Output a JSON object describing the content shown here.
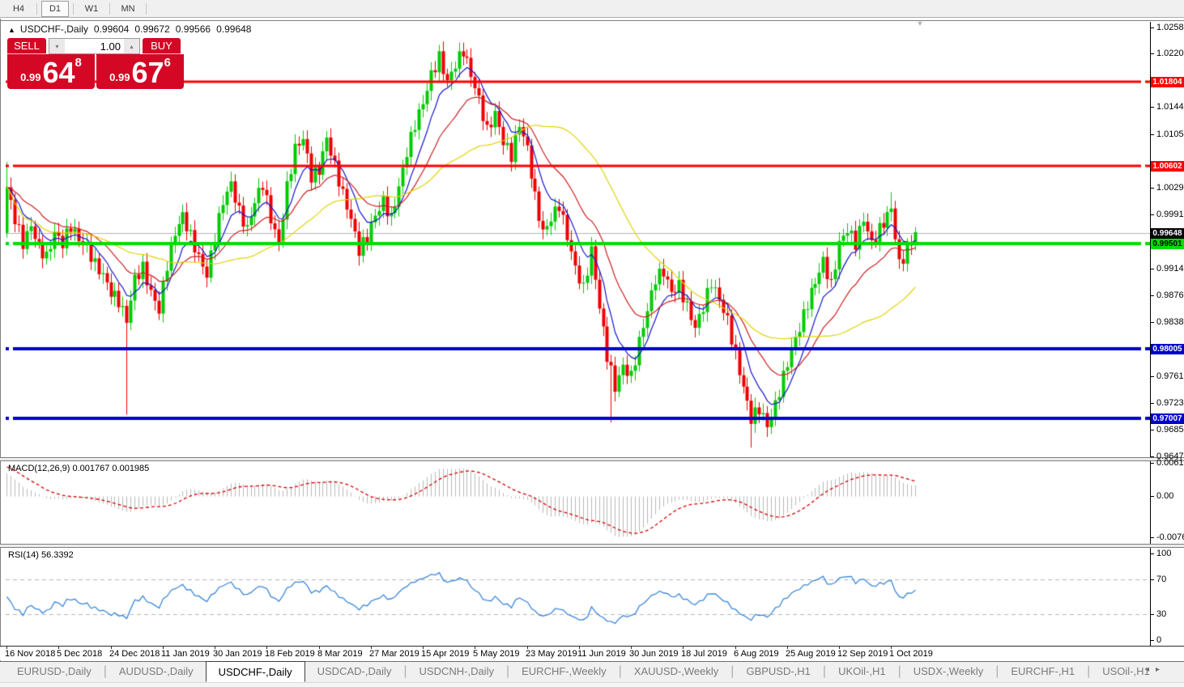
{
  "toolbar": {
    "timeframes": [
      {
        "label": "H4",
        "active": false
      },
      {
        "label": "D1",
        "active": true
      },
      {
        "label": "W1",
        "active": false
      },
      {
        "label": "MN",
        "active": false
      }
    ]
  },
  "window": {
    "title": {
      "collapse_icon": "▲",
      "symbol": "USDCHF-,Daily",
      "open": "0.99604",
      "high": "0.99672",
      "low": "0.99566",
      "close": "0.99648"
    },
    "trade_panel": {
      "sell_label": "SELL",
      "buy_label": "BUY",
      "volume": "1.00",
      "spin_down_icon": "▾",
      "spin_up_icon": "▴",
      "sell_price_int": "0.99",
      "sell_price_big": "64",
      "sell_price_sup": "8",
      "buy_price_int": "0.99",
      "buy_price_big": "67",
      "buy_price_sup": "6"
    },
    "shift_marker_icon": "▼"
  },
  "price_axis": {
    "labels": [
      {
        "text": "1.02580",
        "value": 1.0258
      },
      {
        "text": "1.02200",
        "value": 1.022
      },
      {
        "text": "1.01440",
        "value": 1.0144
      },
      {
        "text": "1.01050",
        "value": 1.0105
      },
      {
        "text": "1.00290",
        "value": 1.0029
      },
      {
        "text": "0.99910",
        "value": 0.9991
      },
      {
        "text": "0.99140",
        "value": 0.9914
      },
      {
        "text": "0.98760",
        "value": 0.9876
      },
      {
        "text": "0.98380",
        "value": 0.9838
      },
      {
        "text": "0.97610",
        "value": 0.9761
      },
      {
        "text": "0.97230",
        "value": 0.9723
      },
      {
        "text": "0.96850",
        "value": 0.9685
      },
      {
        "text": "0.96470",
        "value": 0.9647
      }
    ],
    "badges": [
      {
        "text": "1.01804",
        "value": 1.01804,
        "bg": "#ff0000",
        "fg": "#ffffff"
      },
      {
        "text": "1.00602",
        "value": 1.00602,
        "bg": "#ff0000",
        "fg": "#ffffff"
      },
      {
        "text": "0.99648",
        "value": 0.99648,
        "bg": "#000000",
        "fg": "#ffffff"
      },
      {
        "text": "0.99501",
        "value": 0.99501,
        "bg": "#00dd00",
        "fg": "#000000"
      },
      {
        "text": "0.98005",
        "value": 0.98005,
        "bg": "#0000cc",
        "fg": "#ffffff"
      },
      {
        "text": "0.97007",
        "value": 0.97007,
        "bg": "#0000cc",
        "fg": "#ffffff"
      }
    ]
  },
  "macd_panel": {
    "label": "MACD(12,26,9) 0.001767 0.001985",
    "axis": [
      {
        "text": "0.00613",
        "value": 0.00613
      },
      {
        "text": "0.00",
        "value": 0
      },
      {
        "text": "-0.00761",
        "value": -0.00761
      }
    ]
  },
  "rsi_panel": {
    "label": "RSI(14) 56.3392",
    "axis": [
      {
        "text": "100",
        "value": 100
      },
      {
        "text": "70",
        "value": 70
      },
      {
        "text": "30",
        "value": 30
      },
      {
        "text": "0",
        "value": 0
      }
    ]
  },
  "time_axis": {
    "labels": [
      "16 Nov 2018",
      "5 Dec 2018",
      "24 Dec 2018",
      "11 Jan 2019",
      "30 Jan 2019",
      "18 Feb 2019",
      "8 Mar 2019",
      "27 Mar 2019",
      "15 Apr 2019",
      "5 May 2019",
      "23 May 2019",
      "11 Jun 2019",
      "30 Jun 2019",
      "18 Jul 2019",
      "6 Aug 2019",
      "25 Aug 2019",
      "12 Sep 2019",
      "1 Oct 2019"
    ]
  },
  "tabs": {
    "items": [
      {
        "label": "EURUSD-,Daily",
        "active": false
      },
      {
        "label": "AUDUSD-,Daily",
        "active": false
      },
      {
        "label": "USDCHF-,Daily",
        "active": true
      },
      {
        "label": "USDCAD-,Daily",
        "active": false
      },
      {
        "label": "USDCNH-,Daily",
        "active": false
      },
      {
        "label": "EURCHF-,Weekly",
        "active": false
      },
      {
        "label": "XAUUSD-,Weekly",
        "active": false
      },
      {
        "label": "GBPUSD-,H1",
        "active": false
      },
      {
        "label": "UKOil-,H1",
        "active": false
      },
      {
        "label": "USDX-,Weekly",
        "active": false
      },
      {
        "label": "EURCHF-,H1",
        "active": false
      },
      {
        "label": "USOil-,H1",
        "active": false
      }
    ],
    "scroll_left_icon": "◂",
    "scroll_right_icon": "▸"
  },
  "chart_data": {
    "type": "candlestick",
    "symbol": "USDCHF-",
    "timeframe": "Daily",
    "ohlc_display": {
      "open": 0.99604,
      "high": 0.99672,
      "low": 0.99566,
      "close": 0.99648
    },
    "bars": 228,
    "price_axis_range": {
      "top": 1.02655,
      "bottom": 0.96455
    },
    "current_price": 0.99648,
    "up_color": "#00cc00",
    "down_color": "#ee0000",
    "horizontal_levels": [
      {
        "price": 1.01804,
        "color": "#ff0000",
        "width": 3,
        "type": "resistance"
      },
      {
        "price": 1.00602,
        "color": "#ff0000",
        "width": 3,
        "type": "resistance"
      },
      {
        "price": 0.99501,
        "color": "#00dd00",
        "width": 4,
        "type": "pivot"
      },
      {
        "price": 0.98005,
        "color": "#0000cc",
        "width": 4,
        "type": "support"
      },
      {
        "price": 0.97007,
        "color": "#0000cc",
        "width": 4,
        "type": "support"
      }
    ],
    "close_anchors": [
      [
        0,
        1.003
      ],
      [
        2,
        0.9985
      ],
      [
        4,
        0.995
      ],
      [
        6,
        0.9975
      ],
      [
        8,
        0.9945
      ],
      [
        10,
        0.993
      ],
      [
        12,
        0.9965
      ],
      [
        14,
        0.995
      ],
      [
        16,
        0.9975
      ],
      [
        18,
        0.9955
      ],
      [
        20,
        0.9945
      ],
      [
        22,
        0.992
      ],
      [
        24,
        0.9905
      ],
      [
        26,
        0.988
      ],
      [
        28,
        0.9868
      ],
      [
        30,
        0.984
      ],
      [
        32,
        0.99
      ],
      [
        34,
        0.9915
      ],
      [
        36,
        0.988
      ],
      [
        38,
        0.9855
      ],
      [
        40,
        0.992
      ],
      [
        42,
        0.9965
      ],
      [
        44,
        0.999
      ],
      [
        46,
        0.996
      ],
      [
        48,
        0.993
      ],
      [
        50,
        0.9905
      ],
      [
        52,
        0.996
      ],
      [
        54,
        1.001
      ],
      [
        56,
        1.0035
      ],
      [
        58,
        0.9995
      ],
      [
        60,
        0.997
      ],
      [
        62,
        1.001
      ],
      [
        64,
        1.0035
      ],
      [
        66,
        0.9985
      ],
      [
        68,
        0.995
      ],
      [
        70,
        1.003
      ],
      [
        72,
        1.0085
      ],
      [
        74,
        1.01
      ],
      [
        76,
        1.0045
      ],
      [
        78,
        1.0055
      ],
      [
        80,
        1.01
      ],
      [
        82,
        1.006
      ],
      [
        84,
        1.002
      ],
      [
        86,
        0.9985
      ],
      [
        88,
        0.994
      ],
      [
        90,
        0.996
      ],
      [
        92,
        0.999
      ],
      [
        94,
        1.001
      ],
      [
        96,
        0.9985
      ],
      [
        98,
        1.003
      ],
      [
        100,
        1.008
      ],
      [
        102,
        1.012
      ],
      [
        104,
        1.015
      ],
      [
        106,
        1.019
      ],
      [
        108,
        1.0215
      ],
      [
        110,
        1.018
      ],
      [
        112,
        1.0205
      ],
      [
        114,
        1.0225
      ],
      [
        116,
        1.019
      ],
      [
        118,
        1.0155
      ],
      [
        120,
        1.011
      ],
      [
        122,
        1.0135
      ],
      [
        124,
        1.0095
      ],
      [
        126,
        1.0075
      ],
      [
        128,
        1.012
      ],
      [
        130,
        1.0085
      ],
      [
        132,
        1.0015
      ],
      [
        134,
        0.9965
      ],
      [
        136,
        0.9985
      ],
      [
        138,
        1.0005
      ],
      [
        140,
        0.996
      ],
      [
        142,
        0.9915
      ],
      [
        144,
        0.9885
      ],
      [
        146,
        0.994
      ],
      [
        148,
        0.986
      ],
      [
        150,
        0.979
      ],
      [
        152,
        0.9745
      ],
      [
        154,
        0.9775
      ],
      [
        156,
        0.976
      ],
      [
        158,
        0.981
      ],
      [
        160,
        0.9855
      ],
      [
        162,
        0.99
      ],
      [
        164,
        0.991
      ],
      [
        166,
        0.988
      ],
      [
        168,
        0.989
      ],
      [
        170,
        0.986
      ],
      [
        172,
        0.983
      ],
      [
        174,
        0.986
      ],
      [
        176,
        0.9895
      ],
      [
        178,
        0.987
      ],
      [
        180,
        0.984
      ],
      [
        182,
        0.979
      ],
      [
        184,
        0.9745
      ],
      [
        186,
        0.97
      ],
      [
        188,
        0.9715
      ],
      [
        190,
        0.969
      ],
      [
        192,
        0.972
      ],
      [
        194,
        0.976
      ],
      [
        196,
        0.98
      ],
      [
        198,
        0.983
      ],
      [
        200,
        0.9865
      ],
      [
        202,
        0.9895
      ],
      [
        204,
        0.9925
      ],
      [
        206,
        0.989
      ],
      [
        208,
        0.995
      ],
      [
        210,
        0.997
      ],
      [
        212,
        0.995
      ],
      [
        214,
        0.9985
      ],
      [
        216,
        0.995
      ],
      [
        218,
        0.997
      ],
      [
        220,
        0.999
      ],
      [
        221,
        1.0
      ],
      [
        223,
        0.992
      ],
      [
        225,
        0.994
      ],
      [
        227,
        0.9965
      ]
    ],
    "wiggle_amp": 0.0009,
    "spikes": [
      {
        "i": 0,
        "high": 1.0066
      },
      {
        "i": 30,
        "low": 0.9706
      },
      {
        "i": 114,
        "high": 1.0231
      },
      {
        "i": 151,
        "low": 0.9695
      },
      {
        "i": 186,
        "low": 0.9659
      },
      {
        "i": 221,
        "high": 1.0023
      }
    ],
    "moving_averages": [
      {
        "type": "ema",
        "period": 8,
        "color": "#1515cd"
      },
      {
        "type": "ema",
        "period": 20,
        "color": "#cc2020"
      },
      {
        "type": "sma",
        "period": 40,
        "color": "#e0d300"
      }
    ],
    "macd": {
      "fast": 12,
      "slow": 26,
      "signal": 9,
      "histogram_color": "#b9b9b9",
      "signal_color": "#d40000",
      "last_values": [
        0.001767,
        0.001985
      ]
    },
    "rsi": {
      "period": 14,
      "color": "#3a87d9",
      "last_value": 56.3392,
      "levels": [
        70,
        30
      ]
    }
  }
}
